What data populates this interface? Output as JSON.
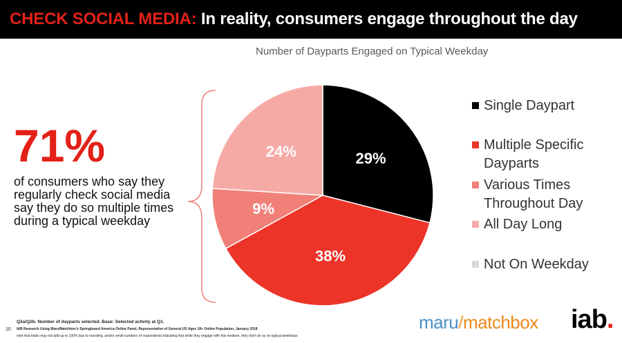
{
  "header": {
    "highlight": "CHECK SOCIAL MEDIA:",
    "title": "In reality, consumers engage throughout the day"
  },
  "stat": {
    "value": "71%",
    "description": "of consumers who say they regularly check social media say they do so multiple times during a typical weekday"
  },
  "chart_data": {
    "type": "pie",
    "title": "Number of Dayparts Engaged on Typical Weekday",
    "slices": [
      {
        "label": "Single Daypart",
        "value": 29,
        "display": "29%",
        "color": "#000000",
        "label_color": "#ffffff"
      },
      {
        "label": "Multiple Specific Dayparts",
        "value": 38,
        "display": "38%",
        "color": "#ec3428",
        "label_color": "#ffffff"
      },
      {
        "label": "Various Times Throughout Day",
        "value": 9,
        "display": "9%",
        "color": "#f08078",
        "label_color": "#ffffff"
      },
      {
        "label": "All Day Long",
        "value": 24,
        "display": "24%",
        "color": "#f6aaa6",
        "label_color": "#ffffff"
      }
    ],
    "legend": [
      {
        "label": "Single Daypart",
        "color": "#000000"
      },
      {
        "label": "Multiple Specific Dayparts",
        "color": "#ec3428"
      },
      {
        "label": "Various Times Throughout Day",
        "color": "#f08078"
      },
      {
        "label": "All Day Long",
        "color": "#f6aaa6"
      },
      {
        "label": "Not On Weekday",
        "color": "#d9d9d9"
      }
    ],
    "legend_position": "right"
  },
  "footnotes": {
    "line1": "Q2a/Q2b. Number of dayparts selected. Base: Selected activity at Q1.",
    "line2": "IAB Research Using Maru/Matchbox's Springboard America Online Panel, Representative of General US Ages 18+ Online Population, January 2018",
    "line3": "note that totals may not add up to 100% due to rounding, and/or small numbers of respondents indicating that while they engage with this medium, they don't do so on typical weekdays"
  },
  "page_number": "10",
  "logos": {
    "maru": "maru",
    "slash": "/",
    "matchbox": "matchbox",
    "iab": "iab",
    "iab_dot": "."
  }
}
